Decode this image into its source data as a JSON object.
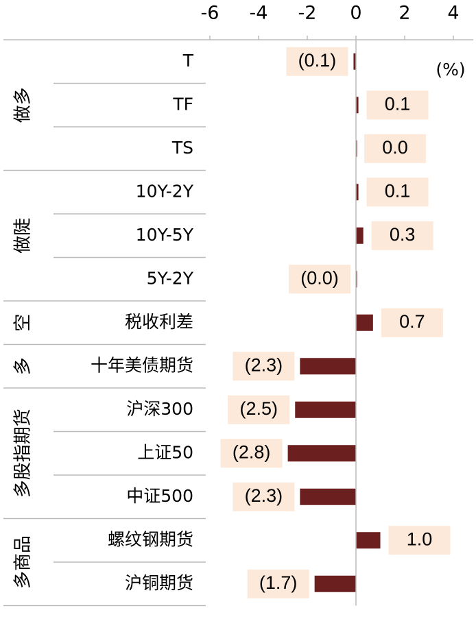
{
  "chart_data": {
    "type": "bar",
    "orientation": "horizontal",
    "unit_label": "(%)",
    "xlim": [
      -6,
      4
    ],
    "xticks": [
      -6,
      -4,
      -2,
      0,
      2,
      4
    ],
    "color": "#6b1f1f",
    "groups": [
      {
        "name": "做多",
        "categories": [
          "T",
          "TF",
          "TS"
        ],
        "values": [
          -0.1,
          0.1,
          0.0
        ],
        "value_labels": [
          "(0.1)",
          "0.1",
          "0.0"
        ]
      },
      {
        "name": "做陡",
        "categories": [
          "10Y-2Y",
          "10Y-5Y",
          "5Y-2Y"
        ],
        "values": [
          0.1,
          0.3,
          -0.0
        ],
        "value_labels": [
          "0.1",
          "0.3",
          "(0.0)"
        ]
      },
      {
        "name": "空",
        "categories": [
          "税收利差"
        ],
        "values": [
          0.7
        ],
        "value_labels": [
          "0.7"
        ]
      },
      {
        "name": "多",
        "categories": [
          "十年美债期货"
        ],
        "values": [
          -2.3
        ],
        "value_labels": [
          "(2.3)"
        ]
      },
      {
        "name": "多股指期货",
        "categories": [
          "沪深300",
          "上证50",
          "中证500"
        ],
        "values": [
          -2.5,
          -2.8,
          -2.3
        ],
        "value_labels": [
          "(2.5)",
          "(2.8)",
          "(2.3)"
        ]
      },
      {
        "name": "多商品",
        "categories": [
          "螺纹钢期货",
          "沪铜期货"
        ],
        "values": [
          1.0,
          -1.7
        ],
        "value_labels": [
          "1.0",
          "(1.7)"
        ]
      }
    ]
  }
}
